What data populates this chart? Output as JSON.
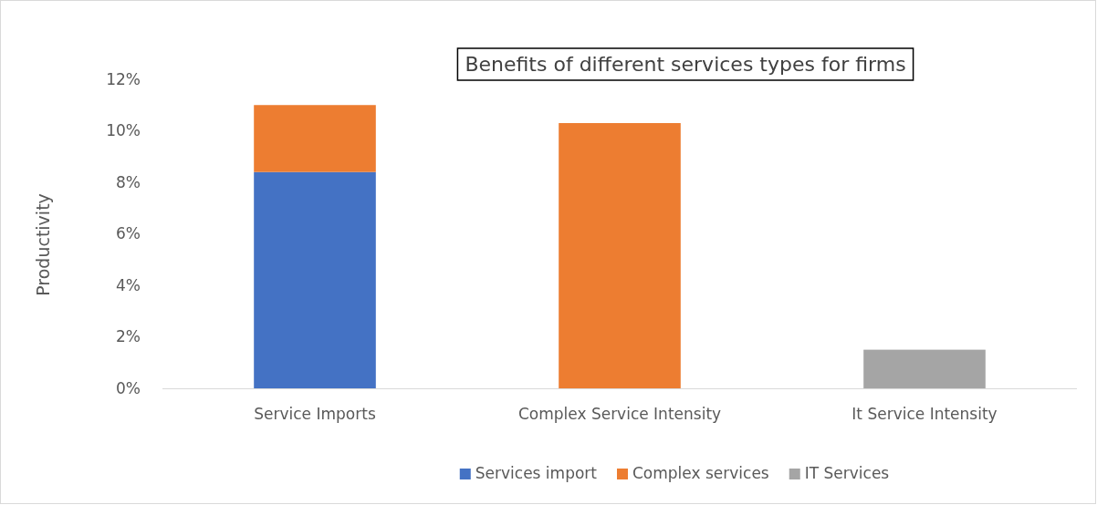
{
  "chart_data": {
    "type": "bar",
    "title": "Benefits of different services types for firms",
    "ylabel": "Productivity",
    "categories": [
      "Service Imports",
      "Complex Service Intensity",
      "It Service Intensity"
    ],
    "stacked": true,
    "series": [
      {
        "name": "Services import",
        "color": "#4472c4",
        "values": [
          8.4,
          null,
          null
        ]
      },
      {
        "name": "Complex services",
        "color": "#ed7d31",
        "values": [
          2.6,
          10.3,
          null
        ]
      },
      {
        "name": "IT Services",
        "color": "#a5a5a5",
        "values": [
          null,
          null,
          1.5
        ]
      }
    ],
    "ylim": [
      0,
      12
    ],
    "yticks": [
      {
        "value": 0,
        "label": "0%"
      },
      {
        "value": 2,
        "label": "2%"
      },
      {
        "value": 4,
        "label": "4%"
      },
      {
        "value": 6,
        "label": "6%"
      },
      {
        "value": 8,
        "label": "8%"
      },
      {
        "value": 10,
        "label": "10%"
      },
      {
        "value": 12,
        "label": "12%"
      }
    ],
    "grid": false,
    "legend": "bottom"
  }
}
